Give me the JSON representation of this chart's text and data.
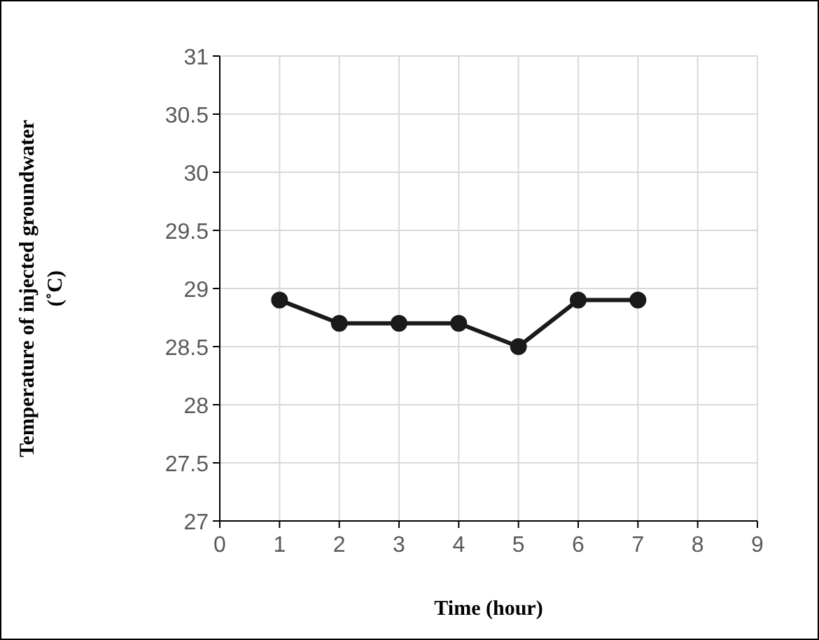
{
  "chart_data": {
    "type": "line",
    "xlabel": "Time (hour)",
    "ylabel": "Temperature of injected groundwater (˚C)",
    "x": [
      1,
      2,
      3,
      4,
      5,
      6,
      7
    ],
    "series": [
      {
        "color": "#1a1a1a",
        "values": [
          28.9,
          28.7,
          28.7,
          28.7,
          28.5,
          28.9,
          28.9
        ]
      }
    ],
    "xlim": [
      0,
      9
    ],
    "xticks": [
      0,
      1,
      2,
      3,
      4,
      5,
      6,
      7,
      8,
      9
    ],
    "ylim": [
      27,
      31
    ],
    "yticks": [
      27,
      27.5,
      28,
      28.5,
      29,
      29.5,
      30,
      30.5,
      31
    ],
    "grid": true,
    "marker": "circle",
    "line_style": "solid"
  }
}
